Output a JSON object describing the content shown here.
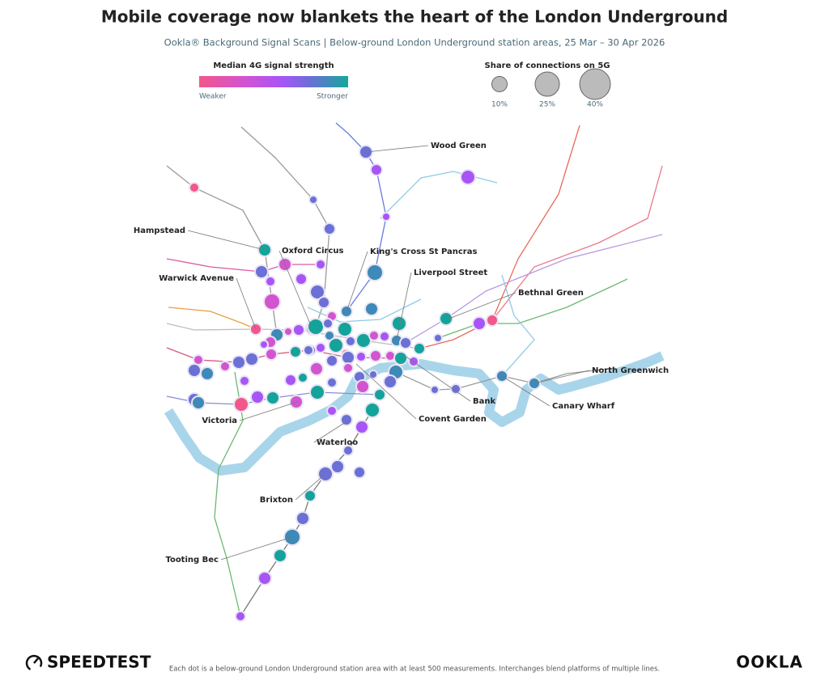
{
  "header": {
    "title": "Mobile coverage now blankets the heart of the London Underground",
    "subtitle": "Ookla® Background Signal Scans  |  Below-ground London Underground station areas, 25 Mar – 30 Apr 2026"
  },
  "legend": {
    "color": {
      "title": "Median 4G signal strength",
      "low": "Weaker",
      "high": "Stronger"
    },
    "size": {
      "title": "Share of connections on 5G",
      "items": [
        {
          "value": 10,
          "label": "10%"
        },
        {
          "value": 25,
          "label": "25%"
        },
        {
          "value": 40,
          "label": "40%"
        }
      ]
    }
  },
  "labels": [
    "Wood Green",
    "Hampstead",
    "Oxford Circus",
    "King's Cross St Pancras",
    "Liverpool Street",
    "Warwick Avenue",
    "Bethnal Green",
    "North Greenwich",
    "Bank",
    "Canary Wharf",
    "Covent Garden",
    "Victoria",
    "Waterloo",
    "Brixton",
    "Tooting Bec"
  ],
  "footer": {
    "logo": "SPEEDTEST",
    "note": "Each dot is a below-ground London Underground station area with at least 500 measurements. Interchanges blend platforms of multiple lines.",
    "brand": "OOKLA"
  }
}
